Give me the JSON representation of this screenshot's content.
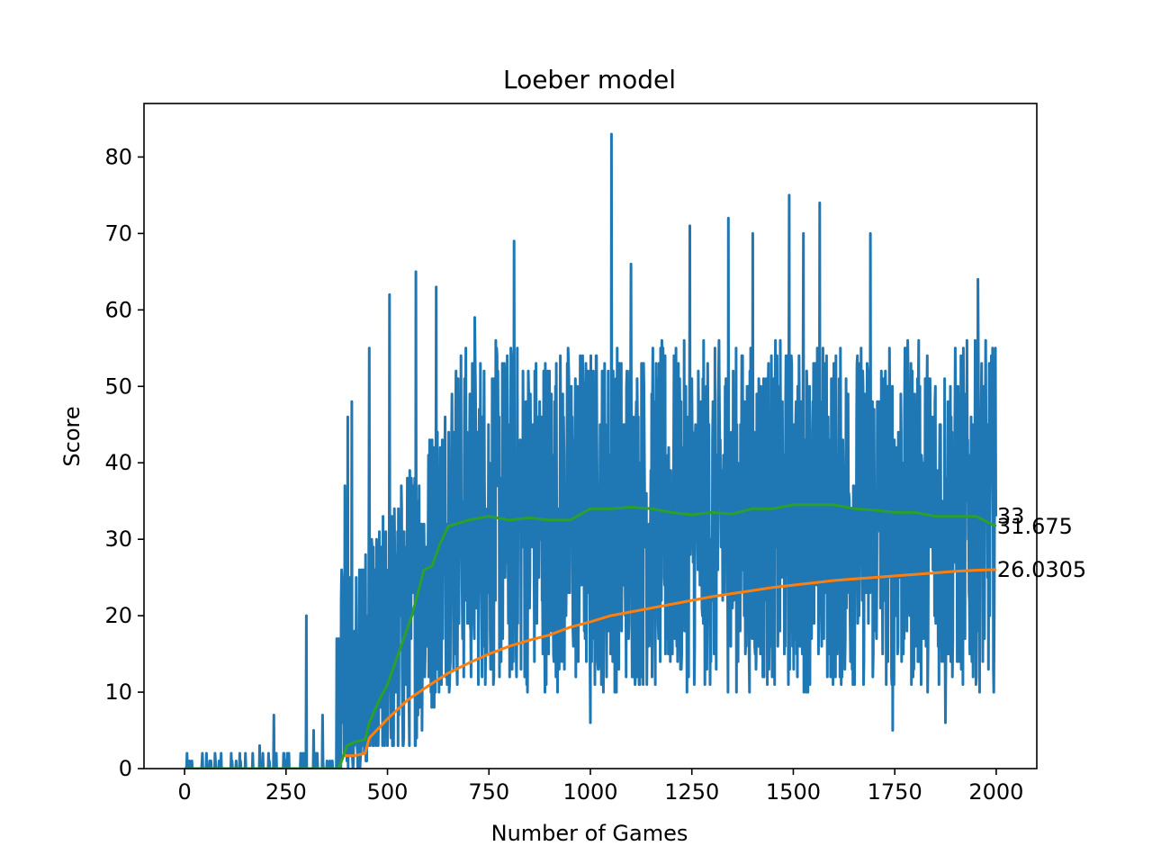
{
  "chart_data": {
    "type": "line",
    "title": "Loeber model",
    "xlabel": "Number of Games",
    "ylabel": "Score",
    "xlim": [
      -100,
      2100
    ],
    "ylim": [
      0,
      87
    ],
    "xticks": [
      0,
      250,
      500,
      750,
      1000,
      1250,
      1500,
      1750,
      2000
    ],
    "yticks": [
      0,
      10,
      20,
      30,
      40,
      50,
      60,
      70,
      80
    ],
    "grid": false,
    "legend": "none",
    "series": [
      {
        "color": "#1f77b4",
        "kind": "score",
        "n_games": 2000,
        "notable_points": [
          {
            "x": 18,
            "y": 1
          },
          {
            "x": 62,
            "y": 1
          },
          {
            "x": 75,
            "y": 2
          },
          {
            "x": 115,
            "y": 2
          },
          {
            "x": 185,
            "y": 3
          },
          {
            "x": 220,
            "y": 7
          },
          {
            "x": 245,
            "y": 2
          },
          {
            "x": 300,
            "y": 20
          },
          {
            "x": 318,
            "y": 5
          },
          {
            "x": 340,
            "y": 7
          },
          {
            "x": 375,
            "y": 17
          },
          {
            "x": 388,
            "y": 25
          },
          {
            "x": 395,
            "y": 37
          },
          {
            "x": 402,
            "y": 46
          },
          {
            "x": 412,
            "y": 48
          },
          {
            "x": 430,
            "y": 17
          },
          {
            "x": 455,
            "y": 55
          },
          {
            "x": 505,
            "y": 62
          },
          {
            "x": 570,
            "y": 65
          },
          {
            "x": 620,
            "y": 63
          },
          {
            "x": 715,
            "y": 59
          },
          {
            "x": 812,
            "y": 69
          },
          {
            "x": 1000,
            "y": 6
          },
          {
            "x": 1052,
            "y": 83
          },
          {
            "x": 1100,
            "y": 66
          },
          {
            "x": 1245,
            "y": 71
          },
          {
            "x": 1340,
            "y": 72
          },
          {
            "x": 1400,
            "y": 70
          },
          {
            "x": 1490,
            "y": 75
          },
          {
            "x": 1525,
            "y": 70
          },
          {
            "x": 1565,
            "y": 74
          },
          {
            "x": 1690,
            "y": 70
          },
          {
            "x": 1745,
            "y": 5
          },
          {
            "x": 1875,
            "y": 6
          },
          {
            "x": 1955,
            "y": 64
          },
          {
            "x": 1999,
            "y": 33
          }
        ]
      },
      {
        "color": "#ff7f0e",
        "kind": "overall_mean",
        "x": [
          0,
          380,
          392,
          420,
          445,
          455,
          500,
          550,
          600,
          650,
          700,
          750,
          800,
          850,
          900,
          950,
          1000,
          1050,
          1100,
          1150,
          1200,
          1250,
          1300,
          1350,
          1400,
          1450,
          1500,
          1550,
          1600,
          1650,
          1700,
          1750,
          1800,
          1850,
          1900,
          1950,
          2000
        ],
        "values": [
          0,
          0,
          1.7,
          1.7,
          2.0,
          4.0,
          6.5,
          9.0,
          10.8,
          12.5,
          13.8,
          15.0,
          16.0,
          16.8,
          17.5,
          18.5,
          19.2,
          20.0,
          20.5,
          21.0,
          21.5,
          22.0,
          22.5,
          22.9,
          23.3,
          23.7,
          24.0,
          24.3,
          24.6,
          24.8,
          25.0,
          25.2,
          25.4,
          25.6,
          25.8,
          25.95,
          26.0305
        ]
      },
      {
        "color": "#2ca02c",
        "kind": "moving_mean",
        "x": [
          0,
          380,
          400,
          420,
          445,
          455,
          480,
          500,
          530,
          560,
          590,
          610,
          630,
          650,
          700,
          750,
          800,
          850,
          900,
          950,
          1000,
          1050,
          1100,
          1150,
          1200,
          1250,
          1300,
          1350,
          1400,
          1450,
          1500,
          1550,
          1600,
          1650,
          1700,
          1750,
          1800,
          1850,
          1900,
          1950,
          2000
        ],
        "values": [
          0,
          0,
          3.0,
          3.5,
          3.8,
          6.0,
          9.0,
          11.0,
          15.5,
          20.0,
          26.0,
          26.5,
          29.5,
          31.7,
          32.5,
          33.0,
          32.5,
          32.8,
          32.5,
          32.5,
          34.0,
          34.0,
          34.2,
          34.0,
          33.5,
          33.2,
          33.5,
          33.3,
          34.0,
          34.0,
          34.5,
          34.5,
          34.5,
          34.0,
          33.8,
          33.5,
          33.5,
          33.0,
          33.0,
          33.0,
          31.675
        ]
      }
    ],
    "annotations": [
      {
        "text": "33",
        "x": 2000,
        "y": 33
      },
      {
        "text": "31.675",
        "x": 2000,
        "y": 31.675
      },
      {
        "text": "26.0305",
        "x": 2000,
        "y": 26.0305
      }
    ]
  }
}
